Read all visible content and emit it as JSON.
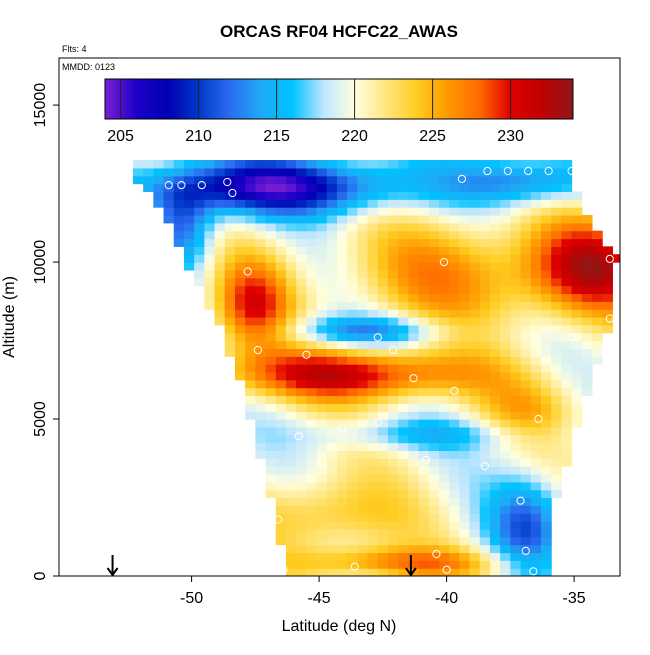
{
  "chart_data": {
    "type": "heatmap",
    "title": "ORCAS RF04 HCFC22_AWAS",
    "corner_labels": [
      "Flts: 4",
      "MMDD: 0123"
    ],
    "xlabel": "Latitude (deg N)",
    "ylabel": "Altitude (m)",
    "xlim": [
      -55.2,
      -33.2
    ],
    "ylim": [
      0,
      16500
    ],
    "x_ticks": [
      -50,
      -45,
      -40,
      -35
    ],
    "y_ticks": [
      0,
      5000,
      10000,
      15000
    ],
    "colorbar": {
      "range": [
        204,
        234
      ],
      "ticks": [
        205,
        210,
        215,
        220,
        225,
        230
      ],
      "colors": [
        "#7a1fd2",
        "#1e00c8",
        "#0000b4",
        "#0038c8",
        "#2a6cf0",
        "#1eaaf5",
        "#00c2ff",
        "#bfe6ff",
        "#ffffe0",
        "#ffe680",
        "#ffcc20",
        "#ff9900",
        "#ff6a00",
        "#e00000",
        "#c00000",
        "#8f1818"
      ]
    },
    "field_profile": {
      "latitudes": [
        -52.5,
        -51,
        -49.5,
        -48,
        -46.5,
        -45,
        -43.5,
        -42,
        -40.5,
        -39,
        -37.5,
        -36,
        -34.5,
        -33.5
      ],
      "altitudes": [
        0,
        500,
        1000,
        1500,
        2000,
        2500,
        3000,
        3500,
        4000,
        4500,
        5000,
        5500,
        6000,
        6500,
        7000,
        7500,
        8000,
        8500,
        9000,
        9500,
        10000,
        10500,
        11000,
        11500,
        12000,
        12500,
        13000
      ]
    },
    "domain_edges": {
      "left_lat_at_altitude": [
        [
          12600,
          -52.6
        ],
        [
          11500,
          -51.3
        ],
        [
          10000,
          -50.5
        ],
        [
          8000,
          -49.2
        ],
        [
          6000,
          -48.3
        ],
        [
          4000,
          -47.6
        ],
        [
          2000,
          -47
        ],
        [
          0,
          -46.5
        ]
      ],
      "right_lat_at_altitude": [
        [
          0,
          -36.2
        ],
        [
          2000,
          -36
        ],
        [
          4000,
          -35.3
        ],
        [
          6000,
          -34.6
        ],
        [
          8000,
          -33.8
        ],
        [
          10000,
          -33.5
        ],
        [
          11500,
          -34.8
        ],
        [
          12800,
          -35.5
        ]
      ]
    },
    "sample_points": [
      {
        "lat": -50.9,
        "alt": 12450
      },
      {
        "lat": -50.4,
        "alt": 12450
      },
      {
        "lat": -49.6,
        "alt": 12450
      },
      {
        "lat": -48.6,
        "alt": 12550
      },
      {
        "lat": -48.4,
        "alt": 12200
      },
      {
        "lat": -47.8,
        "alt": 9700
      },
      {
        "lat": -47.4,
        "alt": 7200
      },
      {
        "lat": -45.5,
        "alt": 7050
      },
      {
        "lat": -42.7,
        "alt": 7600
      },
      {
        "lat": -42.1,
        "alt": 7200
      },
      {
        "lat": -41.3,
        "alt": 6300
      },
      {
        "lat": -39.7,
        "alt": 5900
      },
      {
        "lat": -42.7,
        "alt": 4900
      },
      {
        "lat": -44.1,
        "alt": 4700
      },
      {
        "lat": -45.8,
        "alt": 4450
      },
      {
        "lat": -40.8,
        "alt": 3700
      },
      {
        "lat": -38.5,
        "alt": 3500
      },
      {
        "lat": -37.1,
        "alt": 2400
      },
      {
        "lat": -47.1,
        "alt": 2100
      },
      {
        "lat": -46.6,
        "alt": 1800
      },
      {
        "lat": -40.4,
        "alt": 700
      },
      {
        "lat": -36.9,
        "alt": 800
      },
      {
        "lat": -46.4,
        "alt": 200
      },
      {
        "lat": -43.6,
        "alt": 300
      },
      {
        "lat": -40.0,
        "alt": 200
      },
      {
        "lat": -36.6,
        "alt": 150
      },
      {
        "lat": -36.4,
        "alt": 5000
      },
      {
        "lat": -35.1,
        "alt": 7600
      },
      {
        "lat": -33.6,
        "alt": 10100
      },
      {
        "lat": -33.6,
        "alt": 8200
      },
      {
        "lat": -39.4,
        "alt": 12650
      },
      {
        "lat": -38.4,
        "alt": 12900
      },
      {
        "lat": -37.6,
        "alt": 12900
      },
      {
        "lat": -36.8,
        "alt": 12900
      },
      {
        "lat": -36.0,
        "alt": 12900
      },
      {
        "lat": -35.1,
        "alt": 12900
      },
      {
        "lat": -40.1,
        "alt": 10000
      }
    ],
    "arrows_at_latitude": [
      -53.1,
      -41.4
    ]
  }
}
